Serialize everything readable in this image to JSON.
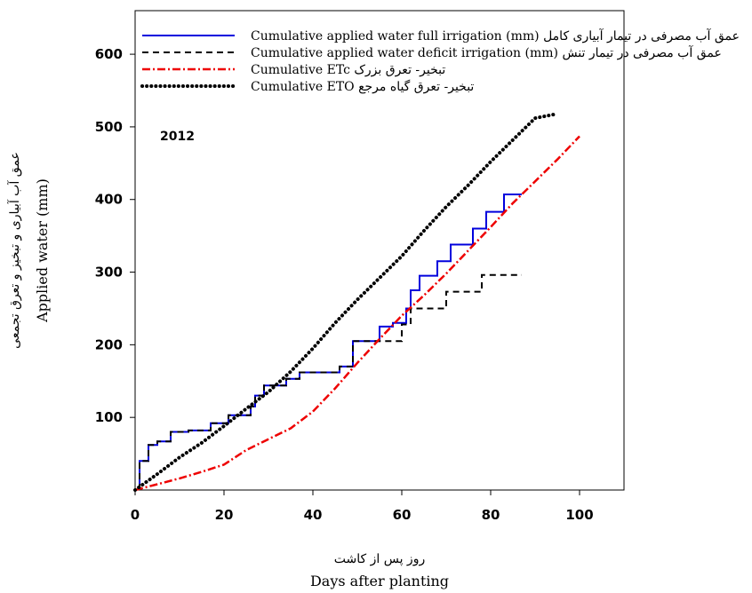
{
  "chart_data": {
    "type": "line",
    "annotation": "2012",
    "xlabel": "Days after planting",
    "xlabel_fa": "روز پس از کاشت",
    "ylabel": "Applied water (mm)",
    "ylabel_fa": "عمق آب آبیاری و تبخیز و تعرق تجمعی",
    "xlim": [
      0,
      110
    ],
    "ylim": [
      0,
      660
    ],
    "xticks": [
      0,
      20,
      40,
      60,
      80,
      100
    ],
    "yticks": [
      100,
      200,
      300,
      400,
      500,
      600
    ],
    "legend_position": "top",
    "series": [
      {
        "name": "Cumulative applied water full irrigation (mm)",
        "name_fa": "عمق آب مصرفی در تیمار آبیاری کامل",
        "color": "#0000dd",
        "style": "solid",
        "step": true,
        "x": [
          1,
          3,
          5,
          8,
          12,
          17,
          21,
          26,
          27,
          29,
          34,
          37,
          46,
          49,
          55,
          58,
          61,
          62,
          64,
          68,
          71,
          76,
          79,
          83,
          87
        ],
        "y": [
          40,
          62,
          67,
          80,
          82,
          92,
          103,
          115,
          130,
          144,
          153,
          162,
          170,
          205,
          225,
          230,
          250,
          275,
          295,
          315,
          338,
          360,
          383,
          407,
          407
        ]
      },
      {
        "name": "Cumulative applied water deficit irrigation (mm)",
        "name_fa": "عمق آب مصرفی در تیمار تنش",
        "color": "#000000",
        "style": "dashed",
        "step": true,
        "x": [
          1,
          3,
          5,
          8,
          12,
          17,
          21,
          26,
          27,
          29,
          34,
          37,
          46,
          49,
          55,
          60,
          62,
          70,
          78,
          87
        ],
        "y": [
          40,
          62,
          67,
          80,
          82,
          92,
          103,
          115,
          130,
          144,
          153,
          162,
          170,
          205,
          205,
          228,
          250,
          273,
          296,
          296
        ]
      },
      {
        "name": "Cumulative ETc",
        "name_fa": "تبخیر- تعرق بزرک",
        "color": "#ee0000",
        "style": "dashdot",
        "step": false,
        "x": [
          0,
          5,
          10,
          15,
          20,
          25,
          30,
          35,
          40,
          45,
          50,
          55,
          60,
          65,
          70,
          75,
          80,
          85,
          90,
          95,
          100
        ],
        "y": [
          0,
          8,
          16,
          25,
          35,
          55,
          70,
          85,
          108,
          140,
          175,
          208,
          240,
          268,
          298,
          330,
          362,
          395,
          425,
          455,
          487
        ]
      },
      {
        "name": "Cumulative ETO",
        "name_fa": "تبخیر- تعرق گیاه مرجع",
        "color": "#000000",
        "style": "dotted",
        "step": false,
        "x": [
          0,
          5,
          10,
          15,
          20,
          25,
          30,
          35,
          40,
          45,
          50,
          55,
          60,
          65,
          70,
          75,
          80,
          85,
          90,
          95
        ],
        "y": [
          0,
          22,
          45,
          65,
          88,
          112,
          135,
          163,
          195,
          230,
          262,
          292,
          322,
          357,
          390,
          420,
          452,
          482,
          512,
          518
        ]
      }
    ]
  }
}
